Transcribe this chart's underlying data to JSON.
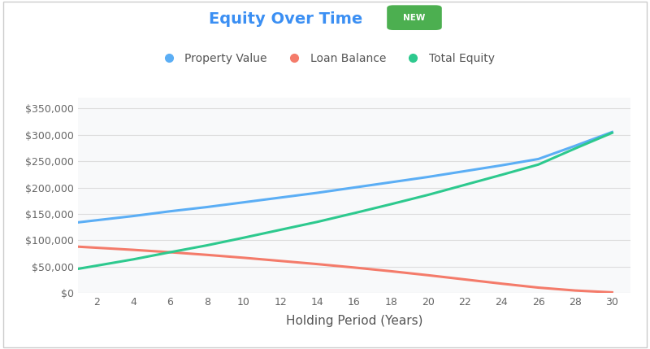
{
  "title": "Equity Over Time",
  "xlabel": "Holding Period (Years)",
  "x_values": [
    0,
    2,
    4,
    6,
    8,
    10,
    12,
    14,
    16,
    18,
    20,
    22,
    24,
    26,
    28,
    30
  ],
  "property_value": [
    130000,
    138000,
    146000,
    155000,
    163000,
    172000,
    181000,
    190000,
    200000,
    210000,
    220000,
    231000,
    242000,
    254000,
    279000,
    305000
  ],
  "loan_balance": [
    90000,
    86000,
    82000,
    77500,
    72500,
    67000,
    61000,
    55000,
    48500,
    41500,
    34000,
    26000,
    18000,
    10500,
    5000,
    1500
  ],
  "total_equity": [
    40000,
    52000,
    64000,
    77500,
    90500,
    105000,
    120000,
    135000,
    151500,
    168500,
    186000,
    205000,
    224000,
    243500,
    274000,
    303500
  ],
  "property_color": "#5BAEF5",
  "loan_color": "#F47B6A",
  "equity_color": "#2DC98E",
  "bg_color": "#FFFFFF",
  "plot_bg_color": "#F8F9FA",
  "grid_color": "#DDDDDD",
  "title_color": "#3B8FF3",
  "ylim": [
    0,
    370000
  ],
  "yticks": [
    0,
    50000,
    100000,
    150000,
    200000,
    250000,
    300000,
    350000
  ],
  "xticks": [
    2,
    4,
    6,
    8,
    10,
    12,
    14,
    16,
    18,
    20,
    22,
    24,
    26,
    28,
    30
  ],
  "new_badge_color": "#4CAF50",
  "new_badge_text": "NEW",
  "legend_labels": [
    "Property Value",
    "Loan Balance",
    "Total Equity"
  ],
  "line_width": 2.2
}
